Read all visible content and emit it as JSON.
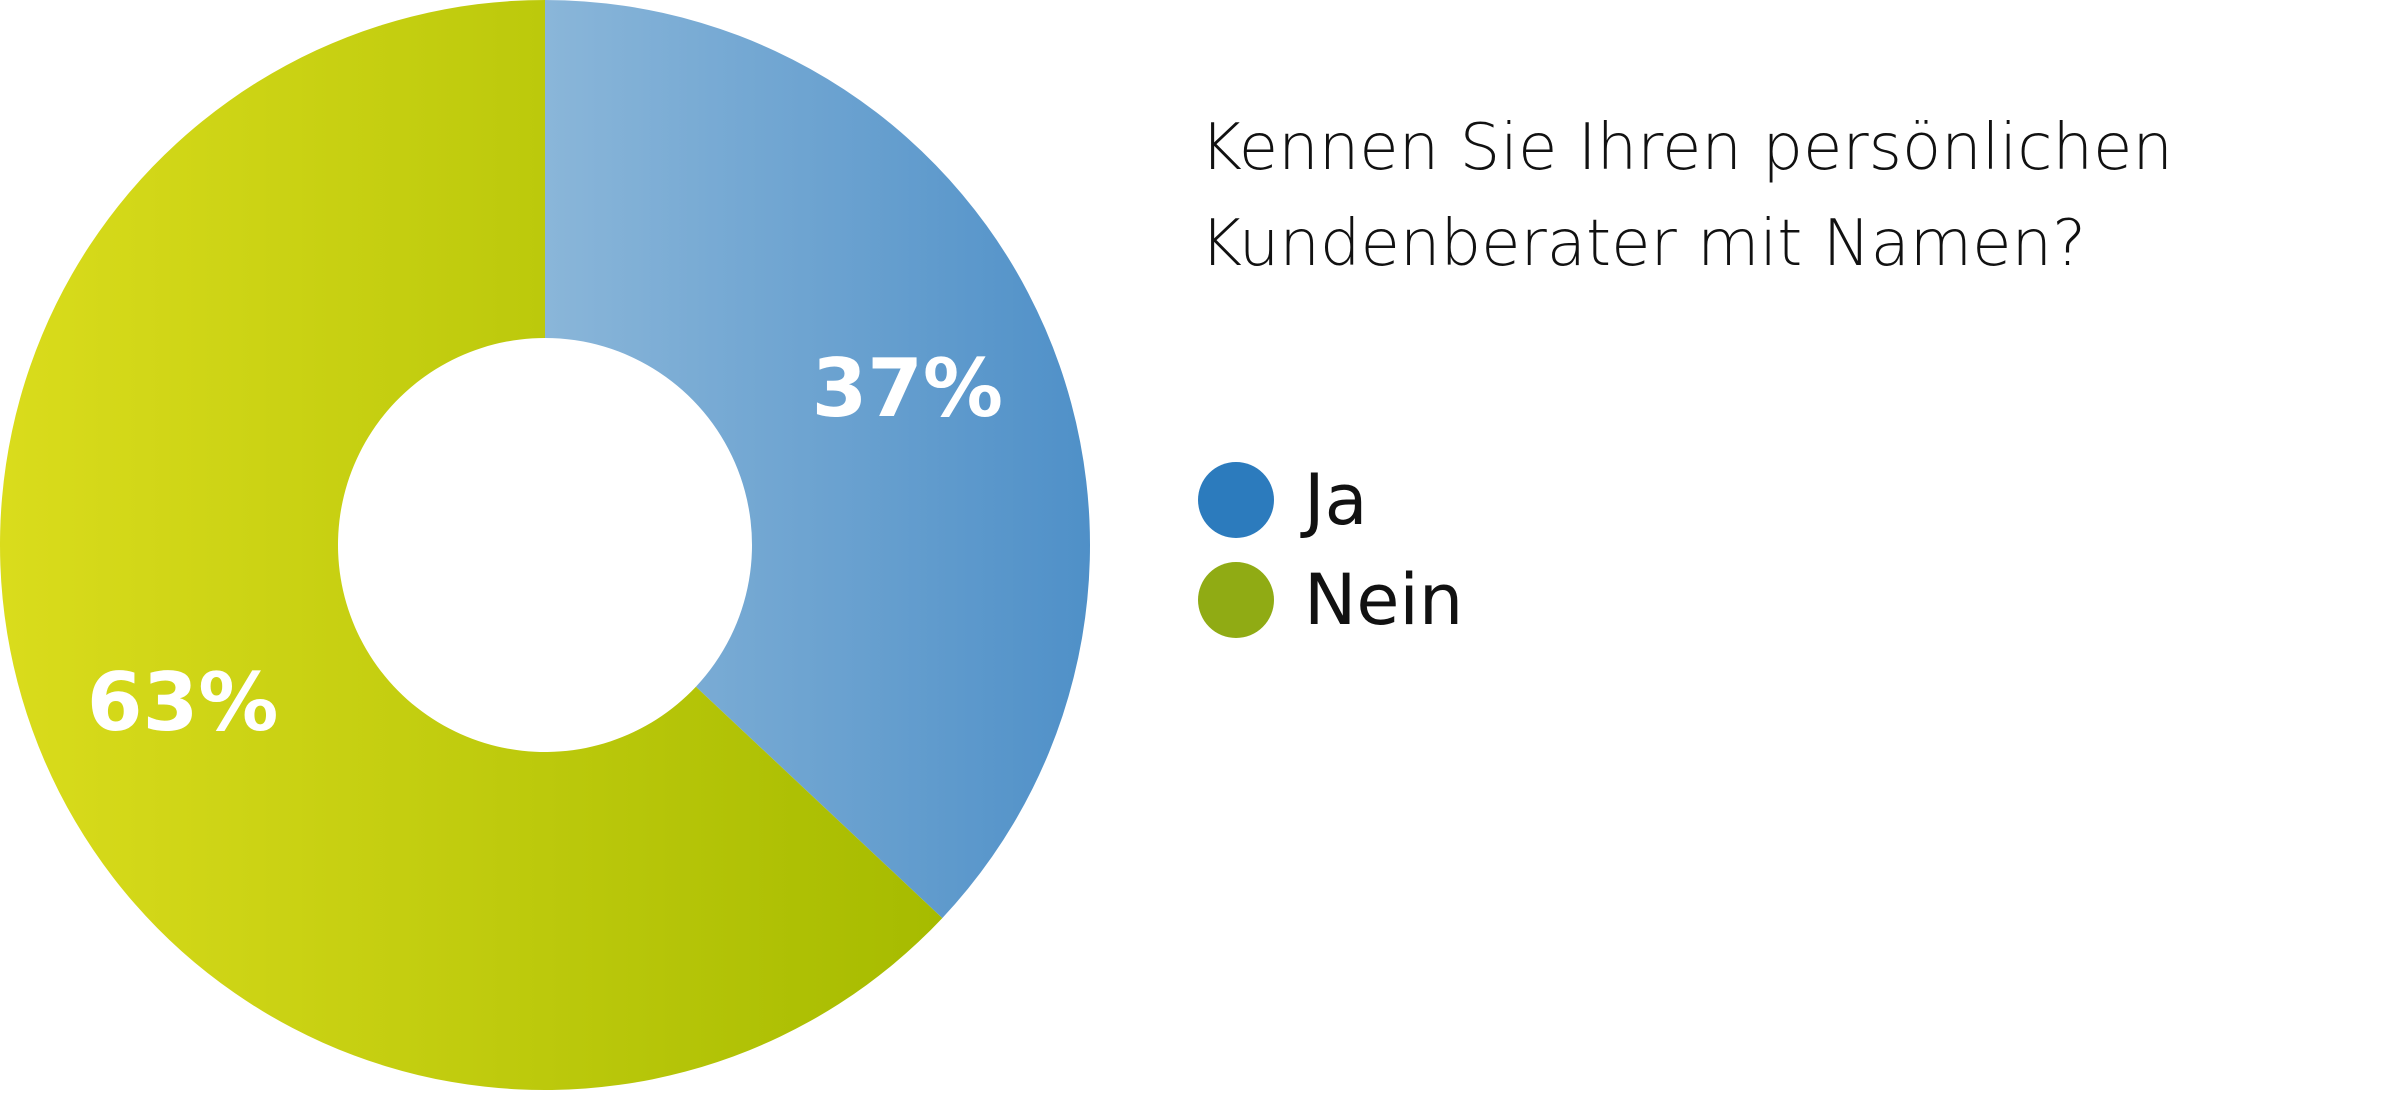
{
  "chart_data": {
    "type": "pie",
    "donut": true,
    "title": "Kennen Sie Ihren persönlichen Kundenberater mit Namen?",
    "title_lines": [
      "Kennen Sie Ihren persönlichen",
      "Kundenberater mit Namen?"
    ],
    "slices": [
      {
        "label": "Ja",
        "value": 37,
        "data_label": "37%",
        "color": "#2c7bbd",
        "gradient": [
          "#8ab6d9",
          "#4f90c8"
        ]
      },
      {
        "label": "Nein",
        "value": 63,
        "data_label": "63%",
        "color": "#90ab14",
        "gradient": [
          "#dadc1c",
          "#a6bb00"
        ]
      }
    ],
    "legend_placement": "right"
  }
}
